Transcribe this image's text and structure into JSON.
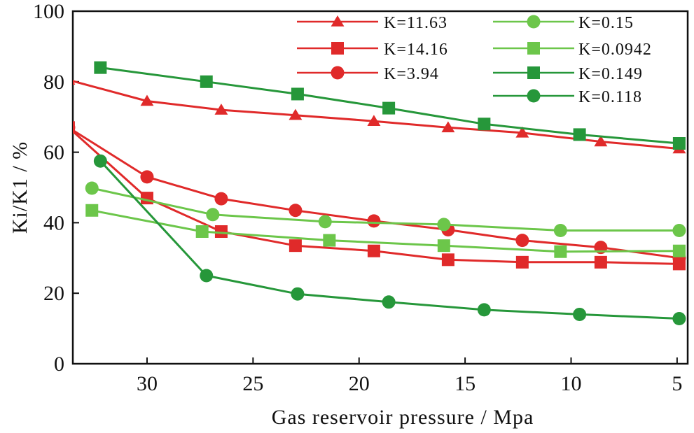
{
  "chart_data": {
    "type": "line",
    "xlabel": "Gas reservoir pressure / Mpa",
    "ylabel": "Ki/K1 / %",
    "xlim": [
      33.5,
      4.5
    ],
    "ylim": [
      0,
      100
    ],
    "x_ticks": [
      30,
      25,
      20,
      15,
      10,
      5
    ],
    "y_ticks": [
      0,
      20,
      40,
      60,
      80,
      100
    ],
    "grid": false,
    "legend_position": "top-right",
    "series": [
      {
        "name": "K=11.63",
        "color": "#e02a2a",
        "marker": "triangle",
        "x": [
          33.7,
          30,
          26.5,
          23,
          19.3,
          15.8,
          12.3,
          8.6,
          4.9
        ],
        "y": [
          80.5,
          74.5,
          72,
          70.5,
          68.8,
          67,
          65.5,
          63,
          61
        ]
      },
      {
        "name": "K=14.16",
        "color": "#e02a2a",
        "marker": "square",
        "x": [
          33.7,
          30,
          26.5,
          23,
          19.3,
          15.8,
          12.3,
          8.6,
          4.9
        ],
        "y": [
          67,
          47,
          37.5,
          33.5,
          32,
          29.5,
          28.8,
          28.8,
          28.3
        ]
      },
      {
        "name": "K=3.94",
        "color": "#e02a2a",
        "marker": "circle",
        "x": [
          33.7,
          30,
          26.5,
          23,
          19.3,
          15.8,
          12.3,
          8.6,
          4.9
        ],
        "y": [
          67,
          53,
          46.8,
          43.5,
          40.5,
          38,
          35,
          33,
          30
        ]
      },
      {
        "name": "K=0.15",
        "color": "#6cc64a",
        "marker": "circle",
        "x": [
          32.6,
          26.9,
          21.6,
          16,
          10.5,
          4.9
        ],
        "y": [
          49.8,
          42.3,
          40.3,
          39.5,
          37.8,
          37.8
        ]
      },
      {
        "name": "K=0.0942",
        "color": "#6cc64a",
        "marker": "square",
        "x": [
          32.6,
          27.4,
          21.4,
          16,
          10.5,
          4.9
        ],
        "y": [
          43.5,
          37.5,
          35,
          33.5,
          31.8,
          32
        ]
      },
      {
        "name": "K=0.149",
        "color": "#26973a",
        "marker": "square",
        "x": [
          32.2,
          27.2,
          22.9,
          18.6,
          14.1,
          9.6,
          4.9
        ],
        "y": [
          84,
          80,
          76.5,
          72.5,
          68,
          65,
          62.5
        ]
      },
      {
        "name": "K=0.118",
        "color": "#26973a",
        "marker": "circle",
        "x": [
          32.2,
          27.2,
          22.9,
          18.6,
          14.1,
          9.6,
          4.9
        ],
        "y": [
          57.5,
          25,
          19.8,
          17.5,
          15.3,
          14,
          12.8
        ]
      }
    ]
  }
}
